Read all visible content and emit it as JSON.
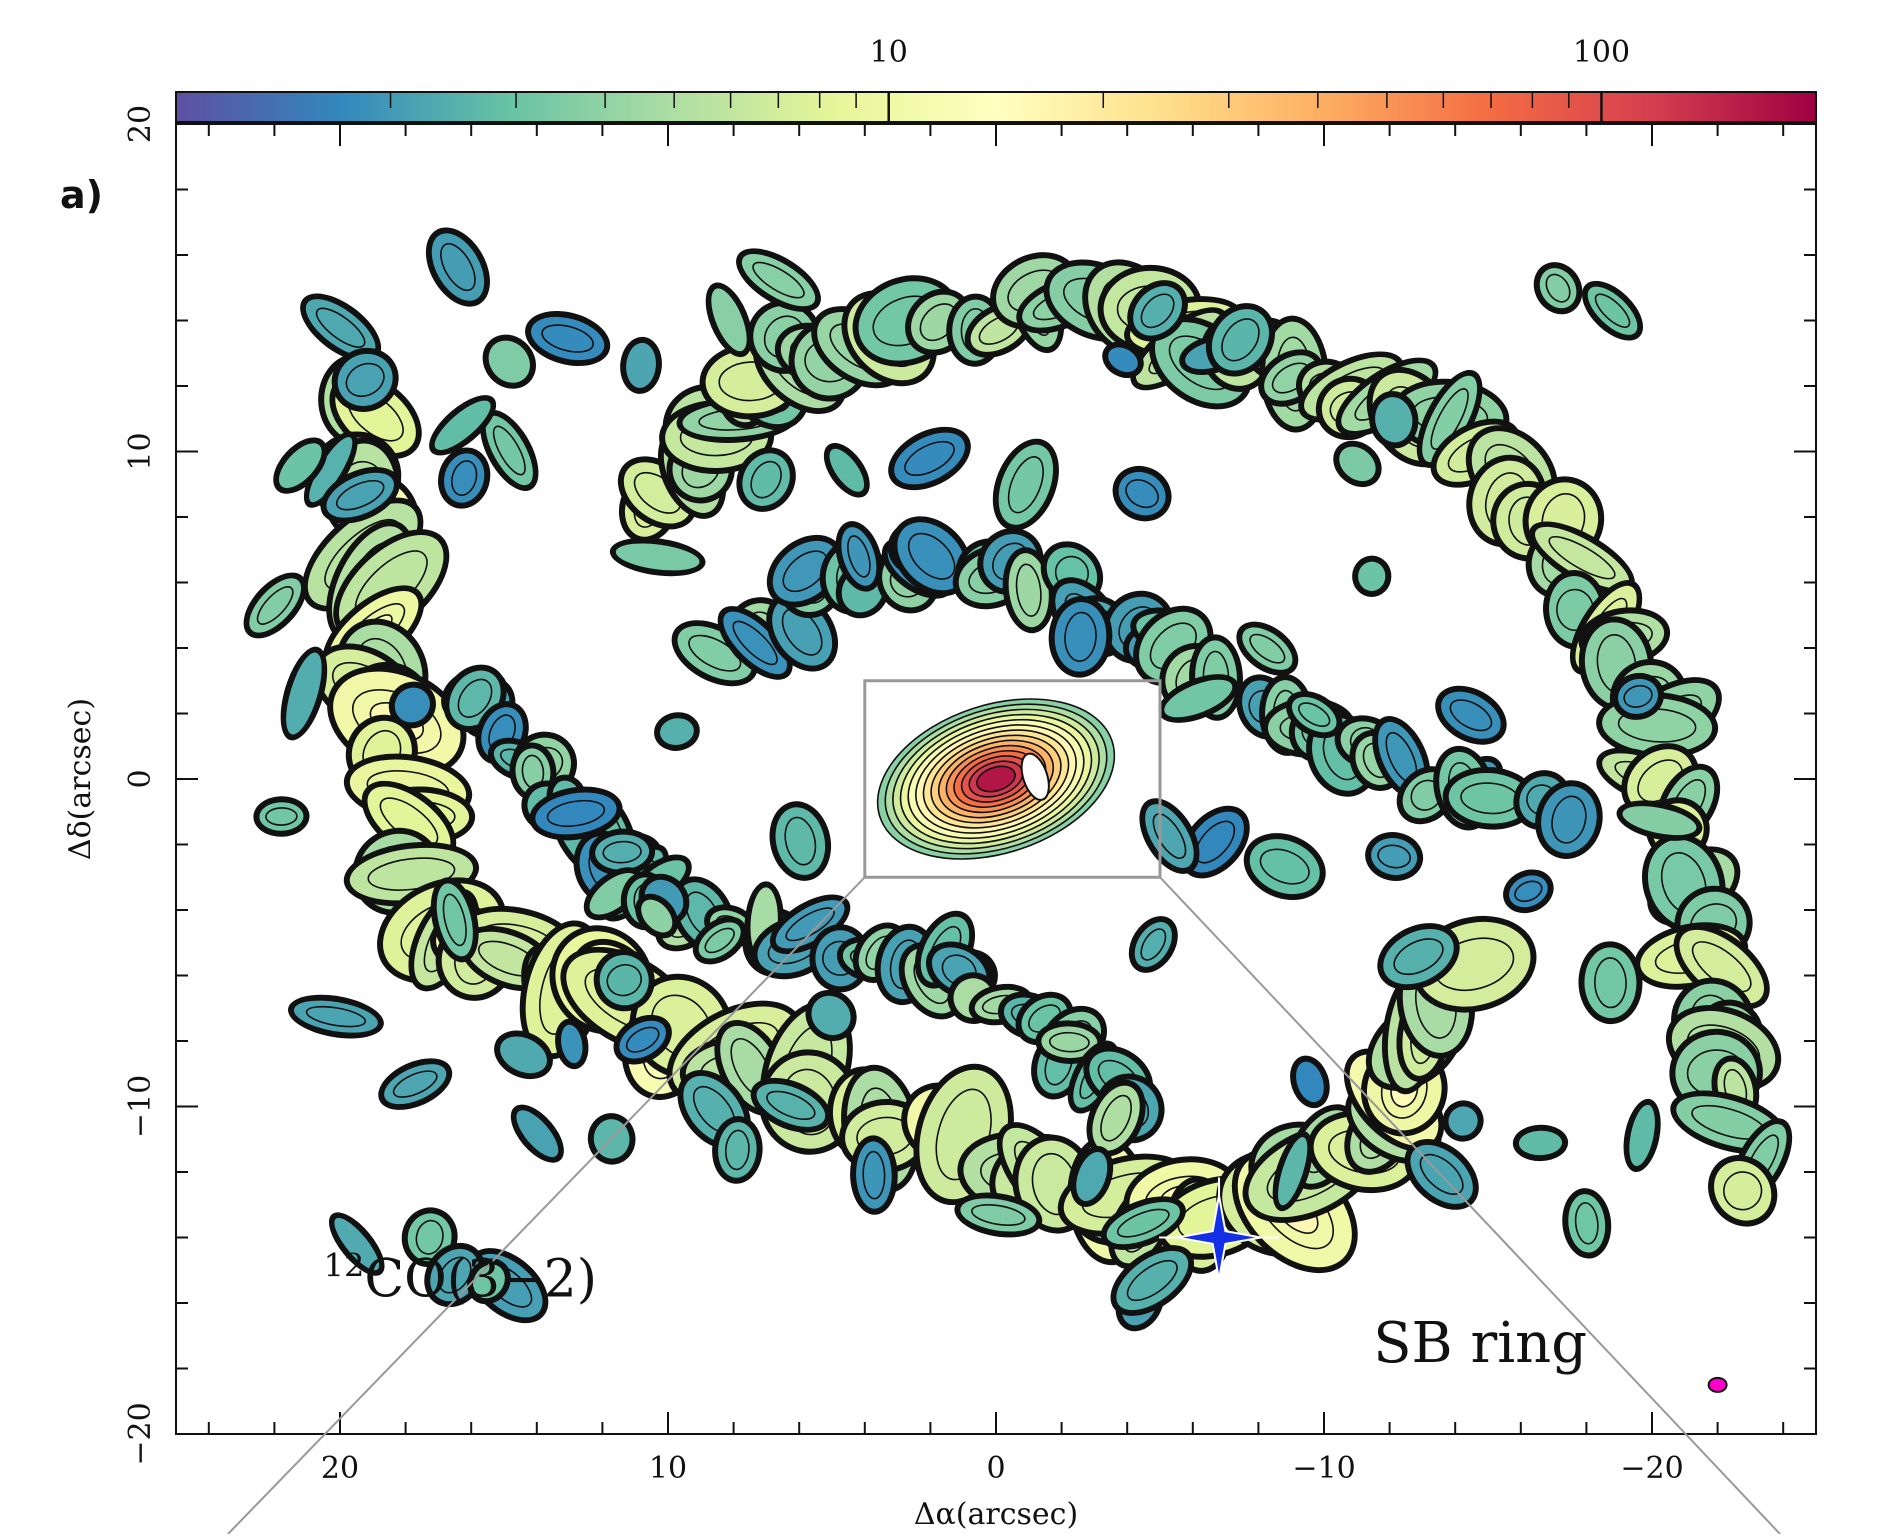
{
  "panel_label": "a)",
  "chart_data": {
    "type": "heatmap",
    "title": "",
    "xlabel": "Δα(arcsec)",
    "ylabel": "Δδ(arcsec)",
    "xlim": [
      25,
      -25
    ],
    "ylim": [
      -20,
      20
    ],
    "x_ticks": [
      20,
      10,
      0,
      -10,
      -20
    ],
    "x_tick_labels": [
      "20",
      "10",
      "0",
      "−10",
      "−20"
    ],
    "y_ticks": [
      -20,
      -10,
      0,
      10,
      20
    ],
    "y_tick_labels": [
      "−20",
      "−10",
      "0",
      "10",
      "20"
    ],
    "colorbar": {
      "scale": "log",
      "range": [
        1,
        200
      ],
      "tick_values": [
        10,
        100
      ],
      "tick_labels": [
        "10",
        "100"
      ],
      "colormap_stops": [
        "#5e4fa2",
        "#3288bd",
        "#66c2a5",
        "#abdda4",
        "#e6f598",
        "#ffffbf",
        "#fee08b",
        "#fdae61",
        "#f46d43",
        "#d53e4f",
        "#9e0142"
      ]
    },
    "annotations": [
      {
        "text_prefix": "12",
        "text": "CO(3−2)",
        "x": 20.5,
        "y": -15.8,
        "kind": "line-label"
      },
      {
        "text": "SB ring",
        "x": -11.5,
        "y": -17.8,
        "kind": "region-label"
      }
    ],
    "marker": {
      "x": -6.8,
      "y": -14.0,
      "shape": "star",
      "color": "#1430e6"
    },
    "zoom_box": {
      "x": [
        4.0,
        -5.0
      ],
      "y": [
        -3.0,
        3.0
      ],
      "color": "#999999"
    },
    "beam": {
      "x": -22.0,
      "y": -18.5,
      "color": "#ff00cc"
    },
    "emission_features": [
      {
        "name": "nuclear disk",
        "x": 0,
        "y": 0,
        "rx": 3.6,
        "ry": 2.2,
        "angle": 18,
        "peak": 1.0
      },
      {
        "name": "northern arm",
        "x": -2,
        "y": 13.5,
        "rx": 10,
        "ry": 1.4,
        "angle": -12,
        "peak": 0.45
      },
      {
        "name": "southern ring",
        "x": -6,
        "y": -11.5,
        "rx": 9,
        "ry": 2.2,
        "angle": 20,
        "peak": 0.5
      },
      {
        "name": "eastern arm",
        "x": 19,
        "y": 5,
        "rx": 1.8,
        "ry": 10,
        "angle": 8,
        "peak": 0.42
      }
    ]
  }
}
